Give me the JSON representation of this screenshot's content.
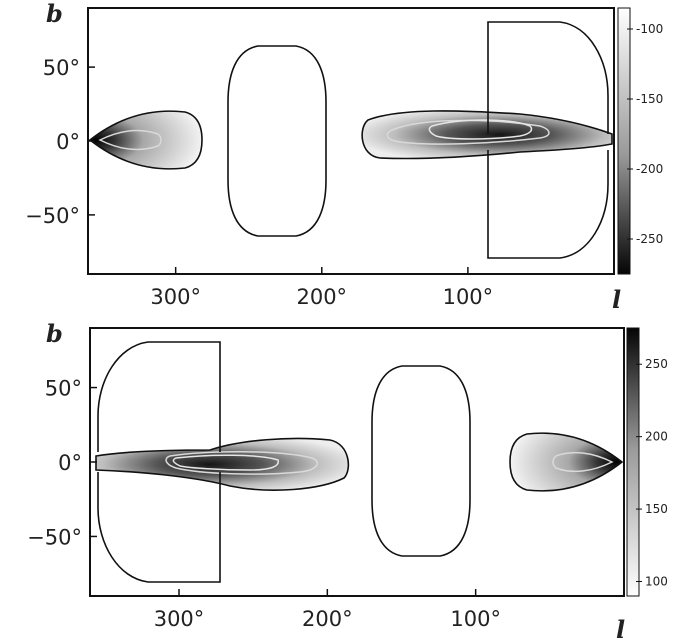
{
  "chart_data": [
    {
      "type": "heatmap",
      "panel": "top",
      "xlabel": "l",
      "ylabel": "b",
      "xlim": [
        360,
        0
      ],
      "ylim": [
        -90,
        90
      ],
      "x_ticks": [
        300,
        200,
        100
      ],
      "x_tick_labels": [
        "300°",
        "200°",
        "100°"
      ],
      "y_ticks": [
        50,
        0,
        -50
      ],
      "y_tick_labels": [
        "50°",
        "0°",
        "−50°"
      ],
      "colorbar": {
        "range": [
          -275,
          -85
        ],
        "reversed": false,
        "ticks": [
          -100,
          -150,
          -200,
          -250
        ],
        "tick_labels": [
          "-100",
          "-150",
          "-200",
          "-250"
        ]
      },
      "colors": {
        "background": "#ffffff",
        "contour": "#111111",
        "inner_contour": "#d9d9d9"
      },
      "features": [
        {
          "kind": "blob",
          "l_range": [
            360,
            283
          ],
          "b_range": [
            -22,
            22
          ],
          "tip_l": 360,
          "peak": -265
        },
        {
          "kind": "outline",
          "l_range": [
            263,
            183
          ],
          "b_range": [
            -65,
            65
          ]
        },
        {
          "kind": "blob",
          "l_range": [
            178,
            8
          ],
          "b_range": [
            -18,
            22
          ],
          "peak": -225
        },
        {
          "kind": "outline",
          "l_range": [
            90,
            8
          ],
          "b_range": [
            12,
            82
          ]
        },
        {
          "kind": "outline",
          "l_range": [
            90,
            8
          ],
          "b_range": [
            -82,
            -12
          ]
        }
      ]
    },
    {
      "type": "heatmap",
      "panel": "bottom",
      "xlabel": "l",
      "ylabel": "b",
      "xlim": [
        360,
        0
      ],
      "ylim": [
        -90,
        90
      ],
      "x_ticks": [
        300,
        200,
        100
      ],
      "x_tick_labels": [
        "300°",
        "200°",
        "100°"
      ],
      "y_ticks": [
        50,
        0,
        -50
      ],
      "y_tick_labels": [
        "50°",
        "0°",
        "−50°"
      ],
      "colorbar": {
        "range": [
          90,
          275
        ],
        "reversed": true,
        "ticks": [
          250,
          200,
          150,
          100
        ],
        "tick_labels": [
          "250",
          "200",
          "150",
          "100"
        ]
      },
      "colors": {
        "background": "#ffffff",
        "contour": "#111111",
        "inner_contour": "#d9d9d9"
      },
      "features": [
        {
          "kind": "blob",
          "l_range": [
            352,
            182
          ],
          "b_range": [
            -22,
            18
          ],
          "peak": 225
        },
        {
          "kind": "outline",
          "l_range": [
            352,
            270
          ],
          "b_range": [
            12,
            82
          ]
        },
        {
          "kind": "outline",
          "l_range": [
            352,
            270
          ],
          "b_range": [
            -82,
            -12
          ]
        },
        {
          "kind": "outline",
          "l_range": [
            177,
            97
          ],
          "b_range": [
            -65,
            65
          ]
        },
        {
          "kind": "blob",
          "l_range": [
            77,
            0
          ],
          "b_range": [
            -22,
            22
          ],
          "tip_l": 0,
          "peak": 265
        }
      ]
    }
  ]
}
